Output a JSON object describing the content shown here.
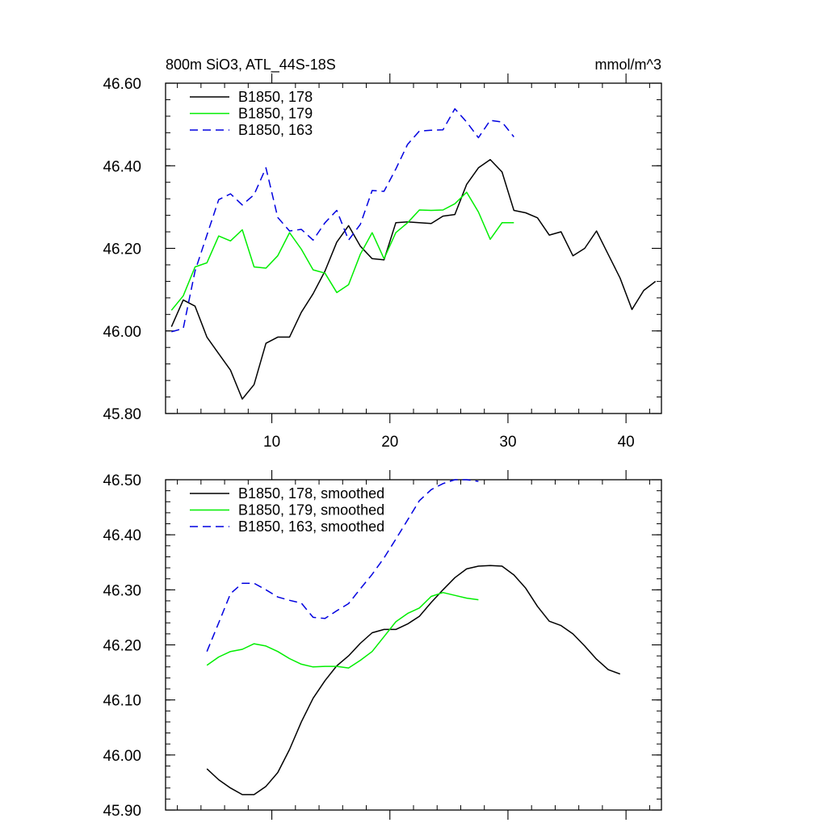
{
  "chart_data": [
    {
      "type": "line",
      "title_left": "800m SiO3, ATL_44S-18S",
      "title_right": "mmol/m^3",
      "xlabel": "",
      "ylabel": "",
      "xlim": [
        1,
        43
      ],
      "ylim": [
        45.8,
        46.6
      ],
      "x_ticks": [
        10,
        20,
        30,
        40
      ],
      "x_tick_labels": [
        "10",
        "20",
        "30",
        "40"
      ],
      "y_ticks": [
        45.8,
        46.0,
        46.2,
        46.4,
        46.6
      ],
      "y_tick_labels": [
        "45.80",
        "46.00",
        "46.20",
        "46.40",
        "46.60"
      ],
      "legend_position": "top-left",
      "grid": false,
      "series": [
        {
          "name": "B1850, 178",
          "color": "#000000",
          "dash": "solid",
          "x": [
            1.5,
            2.5,
            3.5,
            4.5,
            5.5,
            6.5,
            7.5,
            8.5,
            9.5,
            10.5,
            11.5,
            12.5,
            13.5,
            14.5,
            15.5,
            16.5,
            17.5,
            18.5,
            19.5,
            20.5,
            21.5,
            22.5,
            23.5,
            24.5,
            25.5,
            26.5,
            27.5,
            28.5,
            29.5,
            30.5,
            31.5,
            32.5,
            33.5,
            34.5,
            35.5,
            36.5,
            37.5,
            38.5,
            39.5,
            40.5,
            41.5,
            42.5
          ],
          "values": [
            46.01,
            46.075,
            46.06,
            45.985,
            45.945,
            45.905,
            45.835,
            45.87,
            45.97,
            45.985,
            45.985,
            46.045,
            46.09,
            46.145,
            46.215,
            46.255,
            46.205,
            46.175,
            46.172,
            46.262,
            46.264,
            46.262,
            46.26,
            46.278,
            46.282,
            46.355,
            46.395,
            46.415,
            46.385,
            46.292,
            46.286,
            46.274,
            46.232,
            46.24,
            46.182,
            46.2,
            46.242,
            46.185,
            46.128,
            46.052,
            46.098,
            46.12
          ]
        },
        {
          "name": "B1850, 179",
          "color": "#00ee00",
          "dash": "solid",
          "x": [
            1.5,
            2.5,
            3.5,
            4.5,
            5.5,
            6.5,
            7.5,
            8.5,
            9.5,
            10.5,
            11.5,
            12.5,
            13.5,
            14.5,
            15.5,
            16.5,
            17.5,
            18.5,
            19.5,
            20.5,
            21.5,
            22.5,
            23.5,
            24.5,
            25.5,
            26.5,
            27.5,
            28.5,
            29.5,
            30.5
          ],
          "values": [
            46.05,
            46.085,
            46.155,
            46.165,
            46.23,
            46.218,
            46.245,
            46.155,
            46.152,
            46.182,
            46.238,
            46.198,
            46.148,
            46.14,
            46.093,
            46.112,
            46.186,
            46.238,
            46.175,
            46.238,
            46.262,
            46.293,
            46.292,
            46.293,
            46.308,
            46.336,
            46.288,
            46.222,
            46.262,
            46.262
          ]
        },
        {
          "name": "B1850, 163",
          "color": "#0000e0",
          "dash": "dashed",
          "x": [
            1.5,
            2.5,
            3.5,
            4.5,
            5.5,
            6.5,
            7.5,
            8.5,
            9.5,
            10.5,
            11.5,
            12.5,
            13.5,
            14.5,
            15.5,
            16.5,
            17.5,
            18.5,
            19.5,
            20.5,
            21.5,
            22.5,
            23.5,
            24.5,
            25.5,
            26.5,
            27.5,
            28.5,
            29.5,
            30.5
          ],
          "values": [
            45.998,
            46.006,
            46.145,
            46.232,
            46.318,
            46.332,
            46.305,
            46.33,
            46.395,
            46.275,
            46.242,
            46.246,
            46.22,
            46.262,
            46.292,
            46.22,
            46.258,
            46.34,
            46.338,
            46.392,
            46.452,
            46.484,
            46.486,
            46.487,
            46.538,
            46.506,
            46.468,
            46.51,
            46.506,
            46.47
          ]
        }
      ]
    },
    {
      "type": "line",
      "title_left": "",
      "title_right": "",
      "xlabel": "",
      "ylabel": "",
      "xlim": [
        1,
        43
      ],
      "ylim": [
        45.9,
        46.5
      ],
      "x_ticks": [
        10,
        20,
        30,
        40
      ],
      "x_tick_labels": [],
      "y_ticks": [
        45.9,
        46.0,
        46.1,
        46.2,
        46.3,
        46.4,
        46.5
      ],
      "y_tick_labels": [
        "45.90",
        "46.00",
        "46.10",
        "46.20",
        "46.30",
        "46.40",
        "46.50"
      ],
      "legend_position": "top-left",
      "grid": false,
      "series": [
        {
          "name": "B1850, 178, smoothed",
          "color": "#000000",
          "dash": "solid",
          "x": [
            4.5,
            5.5,
            6.5,
            7.5,
            8.5,
            9.5,
            10.5,
            11.5,
            12.5,
            13.5,
            14.5,
            15.5,
            16.5,
            17.5,
            18.5,
            19.5,
            20.5,
            21.5,
            22.5,
            23.5,
            24.5,
            25.5,
            26.5,
            27.5,
            28.5,
            29.5,
            30.5,
            31.5,
            32.5,
            33.5,
            34.5,
            35.5,
            36.5,
            37.5,
            38.5,
            39.5
          ],
          "values": [
            45.975,
            45.955,
            45.94,
            45.928,
            45.928,
            45.943,
            45.968,
            46.01,
            46.06,
            46.103,
            46.135,
            46.162,
            46.18,
            46.203,
            46.222,
            46.228,
            46.228,
            46.238,
            46.252,
            46.277,
            46.3,
            46.322,
            46.338,
            46.343,
            46.344,
            46.343,
            46.327,
            46.303,
            46.27,
            46.243,
            46.235,
            46.22,
            46.198,
            46.174,
            46.155,
            46.147
          ]
        },
        {
          "name": "B1850, 179, smoothed",
          "color": "#00ee00",
          "dash": "solid",
          "x": [
            4.5,
            5.5,
            6.5,
            7.5,
            8.5,
            9.5,
            10.5,
            11.5,
            12.5,
            13.5,
            14.5,
            15.5,
            16.5,
            17.5,
            18.5,
            19.5,
            20.5,
            21.5,
            22.5,
            23.5,
            24.5,
            25.5,
            26.5,
            27.5
          ],
          "values": [
            46.163,
            46.178,
            46.188,
            46.192,
            46.202,
            46.198,
            46.188,
            46.175,
            46.165,
            46.16,
            46.161,
            46.161,
            46.158,
            46.172,
            46.188,
            46.215,
            46.242,
            46.257,
            46.267,
            46.288,
            46.295,
            46.29,
            46.285,
            46.282
          ]
        },
        {
          "name": "B1850, 163, smoothed",
          "color": "#0000e0",
          "dash": "dashed",
          "x": [
            4.5,
            5.5,
            6.5,
            7.5,
            8.5,
            9.5,
            10.5,
            11.5,
            12.5,
            13.5,
            14.5,
            15.5,
            16.5,
            17.5,
            18.5,
            19.5,
            20.5,
            21.5,
            22.5,
            23.5,
            24.5,
            25.5,
            26.5,
            27.5
          ],
          "values": [
            46.188,
            46.24,
            46.293,
            46.312,
            46.312,
            46.3,
            46.287,
            46.281,
            46.276,
            46.25,
            46.248,
            46.262,
            46.275,
            46.302,
            46.328,
            46.358,
            46.392,
            46.427,
            46.462,
            46.482,
            46.493,
            46.5,
            46.5,
            46.497
          ]
        }
      ]
    }
  ]
}
